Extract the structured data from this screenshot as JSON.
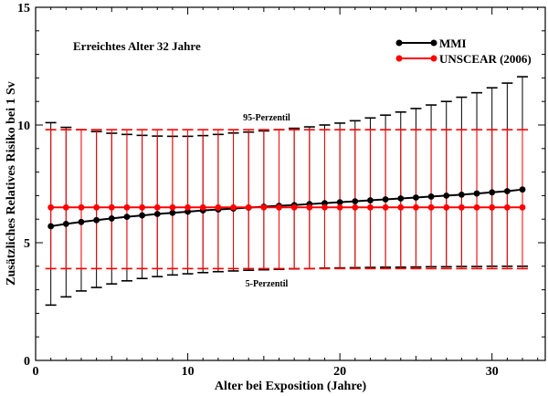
{
  "chart_data": {
    "type": "line",
    "annotation": "Erreichtes Alter 32 Jahre",
    "xlabel": "Alter bei Exposition (Jahre)",
    "ylabel": "Zusätzliches Relatives Risiko bei 1 Sv",
    "xlim": [
      0,
      33.5
    ],
    "ylim": [
      0,
      15
    ],
    "xticks": [
      0,
      10,
      20,
      30
    ],
    "yticks": [
      0,
      5,
      10,
      15
    ],
    "grid": false,
    "legend_position": "top-right",
    "band_labels": {
      "upper": "95-Perzentil",
      "lower": "5-Perzentil"
    },
    "x": [
      1,
      2,
      3,
      4,
      5,
      6,
      7,
      8,
      9,
      10,
      11,
      12,
      13,
      14,
      15,
      16,
      17,
      18,
      19,
      20,
      21,
      22,
      23,
      24,
      25,
      26,
      27,
      28,
      29,
      30,
      31,
      32
    ],
    "series": [
      {
        "name": "MMI",
        "color": "#000000",
        "values": [
          5.7,
          5.8,
          5.88,
          5.96,
          6.03,
          6.1,
          6.16,
          6.22,
          6.27,
          6.32,
          6.37,
          6.41,
          6.45,
          6.49,
          6.53,
          6.57,
          6.6,
          6.64,
          6.68,
          6.72,
          6.76,
          6.8,
          6.84,
          6.88,
          6.92,
          6.96,
          7.0,
          7.04,
          7.09,
          7.14,
          7.19,
          7.26
        ],
        "upper": [
          10.1,
          9.9,
          9.8,
          9.72,
          9.65,
          9.6,
          9.56,
          9.53,
          9.52,
          9.52,
          9.55,
          9.6,
          9.66,
          9.7,
          9.75,
          9.8,
          9.86,
          9.92,
          10.0,
          10.08,
          10.18,
          10.3,
          10.42,
          10.55,
          10.7,
          10.85,
          11.0,
          11.18,
          11.37,
          11.58,
          11.78,
          12.05
        ],
        "lower": [
          2.35,
          2.7,
          2.95,
          3.1,
          3.25,
          3.38,
          3.48,
          3.56,
          3.63,
          3.68,
          3.73,
          3.77,
          3.8,
          3.83,
          3.85,
          3.87,
          3.89,
          3.9,
          3.92,
          3.93,
          3.94,
          3.95,
          3.96,
          3.96,
          3.97,
          3.98,
          3.98,
          3.99,
          3.99,
          4.0,
          4.0,
          4.0
        ]
      },
      {
        "name": "UNSCEAR (2006)",
        "color": "#ff0000",
        "values": [
          6.5,
          6.5,
          6.5,
          6.5,
          6.5,
          6.5,
          6.5,
          6.5,
          6.5,
          6.5,
          6.5,
          6.5,
          6.5,
          6.5,
          6.5,
          6.5,
          6.5,
          6.5,
          6.5,
          6.5,
          6.5,
          6.5,
          6.5,
          6.5,
          6.5,
          6.5,
          6.5,
          6.5,
          6.5,
          6.5,
          6.5,
          6.5
        ],
        "upper": [
          9.8,
          9.8,
          9.8,
          9.8,
          9.8,
          9.8,
          9.8,
          9.8,
          9.8,
          9.8,
          9.8,
          9.8,
          9.8,
          9.8,
          9.8,
          9.8,
          9.8,
          9.8,
          9.8,
          9.8,
          9.8,
          9.8,
          9.8,
          9.8,
          9.8,
          9.8,
          9.8,
          9.8,
          9.8,
          9.8,
          9.8,
          9.8
        ],
        "lower": [
          3.9,
          3.9,
          3.9,
          3.9,
          3.9,
          3.9,
          3.9,
          3.9,
          3.9,
          3.9,
          3.9,
          3.9,
          3.9,
          3.9,
          3.9,
          3.9,
          3.9,
          3.9,
          3.9,
          3.9,
          3.9,
          3.9,
          3.9,
          3.9,
          3.9,
          3.9,
          3.9,
          3.9,
          3.9,
          3.9,
          3.9,
          3.9
        ]
      }
    ]
  }
}
